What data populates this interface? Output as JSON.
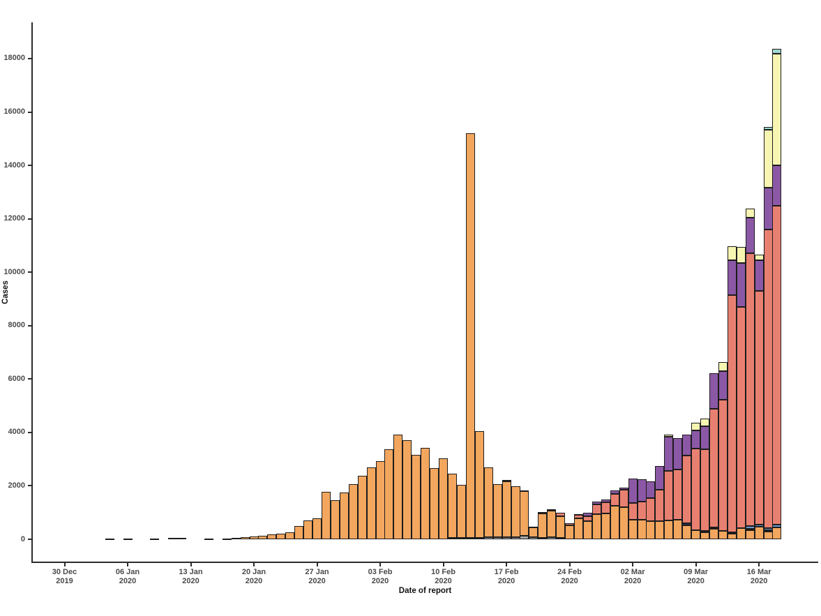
{
  "chart_data": {
    "type": "bar",
    "variant": "stacked-daily-epidemic-curve",
    "title": "",
    "xlabel": "Date of report",
    "ylabel": "Cases",
    "grid": false,
    "legend": "none visible",
    "ylim": [
      0,
      18800
    ],
    "y_ticks": [
      0,
      2000,
      4000,
      6000,
      8000,
      10000,
      12000,
      14000,
      16000,
      18000
    ],
    "x_ticks": [
      {
        "day": 0,
        "l1": "30 Dec",
        "l2": "2019"
      },
      {
        "day": 7,
        "l1": "06 Jan",
        "l2": "2020"
      },
      {
        "day": 14,
        "l1": "13 Jan",
        "l2": "2020"
      },
      {
        "day": 21,
        "l1": "20 Jan",
        "l2": "2020"
      },
      {
        "day": 28,
        "l1": "27 Jan",
        "l2": "2020"
      },
      {
        "day": 35,
        "l1": "03 Feb",
        "l2": "2020"
      },
      {
        "day": 42,
        "l1": "10 Feb",
        "l2": "2020"
      },
      {
        "day": 49,
        "l1": "17 Feb",
        "l2": "2020"
      },
      {
        "day": 56,
        "l1": "24 Feb",
        "l2": "2020"
      },
      {
        "day": 63,
        "l1": "02 Mar",
        "l2": "2020"
      },
      {
        "day": 70,
        "l1": "09 Mar",
        "l2": "2020"
      },
      {
        "day": 77,
        "l1": "16 Mar",
        "l2": "2020"
      }
    ],
    "stack_order": [
      "g",
      "o",
      "n",
      "b",
      "s",
      "p",
      "c",
      "t"
    ],
    "series_colors": {
      "g": "#a8a8a8",
      "o": "#f2a65e",
      "n": "#303a5e",
      "b": "#6f9bce",
      "s": "#e88071",
      "p": "#8b58a5",
      "c": "#f7f5b2",
      "t": "#9fd6cf"
    },
    "bars": [
      {
        "day": 5,
        "date": "04 Jan",
        "seg": {
          "o": 25
        }
      },
      {
        "day": 7,
        "date": "06 Jan",
        "seg": {
          "o": 25
        }
      },
      {
        "day": 10,
        "date": "09 Jan",
        "seg": {
          "o": 28
        }
      },
      {
        "day": 12,
        "date": "11 Jan",
        "seg": {
          "o": 40
        }
      },
      {
        "day": 13,
        "date": "12 Jan",
        "seg": {
          "o": 60
        }
      },
      {
        "day": 16,
        "date": "15 Jan",
        "seg": {
          "o": 25
        }
      },
      {
        "day": 18,
        "date": "17 Jan",
        "seg": {
          "o": 35
        }
      },
      {
        "day": 19,
        "date": "18 Jan",
        "seg": {
          "o": 52
        }
      },
      {
        "day": 20,
        "date": "19 Jan",
        "seg": {
          "o": 78
        }
      },
      {
        "day": 21,
        "date": "20 Jan",
        "seg": {
          "o": 105
        }
      },
      {
        "day": 22,
        "date": "21 Jan",
        "seg": {
          "o": 130
        }
      },
      {
        "day": 23,
        "date": "22 Jan",
        "seg": {
          "o": 175
        }
      },
      {
        "day": 24,
        "date": "23 Jan",
        "seg": {
          "o": 210
        }
      },
      {
        "day": 25,
        "date": "24 Jan",
        "seg": {
          "o": 270
        }
      },
      {
        "day": 26,
        "date": "25 Jan",
        "seg": {
          "o": 500
        }
      },
      {
        "day": 27,
        "date": "26 Jan",
        "seg": {
          "o": 715
        }
      },
      {
        "day": 28,
        "date": "27 Jan",
        "seg": {
          "o": 775
        }
      },
      {
        "day": 29,
        "date": "28 Jan",
        "seg": {
          "o": 1775
        }
      },
      {
        "day": 30,
        "date": "29 Jan",
        "seg": {
          "o": 1470
        }
      },
      {
        "day": 31,
        "date": "30 Jan",
        "seg": {
          "o": 1750
        }
      },
      {
        "day": 32,
        "date": "31 Jan",
        "seg": {
          "o": 2065
        }
      },
      {
        "day": 33,
        "date": "01 Feb",
        "seg": {
          "o": 2370
        }
      },
      {
        "day": 34,
        "date": "02 Feb",
        "seg": {
          "o": 2690
        }
      },
      {
        "day": 35,
        "date": "03 Feb",
        "seg": {
          "o": 2935
        }
      },
      {
        "day": 36,
        "date": "04 Feb",
        "seg": {
          "o": 3370
        }
      },
      {
        "day": 37,
        "date": "05 Feb",
        "seg": {
          "o": 3915
        }
      },
      {
        "day": 38,
        "date": "06 Feb",
        "seg": {
          "o": 3710
        }
      },
      {
        "day": 39,
        "date": "07 Feb",
        "seg": {
          "o": 3160
        }
      },
      {
        "day": 40,
        "date": "08 Feb",
        "seg": {
          "o": 3420
        }
      },
      {
        "day": 41,
        "date": "09 Feb",
        "seg": {
          "o": 2660
        }
      },
      {
        "day": 42,
        "date": "10 Feb",
        "seg": {
          "o": 3040
        }
      },
      {
        "day": 43,
        "date": "11 Feb",
        "seg": {
          "g": 40,
          "o": 2410
        }
      },
      {
        "day": 44,
        "date": "12 Feb",
        "seg": {
          "g": 40,
          "o": 2000
        }
      },
      {
        "day": 45,
        "date": "13 Feb",
        "seg": {
          "g": 50,
          "o": 15160
        }
      },
      {
        "day": 46,
        "date": "14 Feb",
        "seg": {
          "g": 60,
          "o": 3980
        }
      },
      {
        "day": 47,
        "date": "15 Feb",
        "seg": {
          "g": 70,
          "o": 2620
        }
      },
      {
        "day": 48,
        "date": "16 Feb",
        "seg": {
          "g": 70,
          "o": 1990
        }
      },
      {
        "day": 49,
        "date": "17 Feb",
        "seg": {
          "g": 90,
          "o": 2090,
          "s": 50
        }
      },
      {
        "day": 50,
        "date": "18 Feb",
        "seg": {
          "g": 90,
          "o": 1890
        }
      },
      {
        "day": 51,
        "date": "19 Feb",
        "seg": {
          "g": 130,
          "o": 1680,
          "s": 30
        }
      },
      {
        "day": 52,
        "date": "20 Feb",
        "seg": {
          "g": 80,
          "o": 360,
          "s": 30
        }
      },
      {
        "day": 53,
        "date": "21 Feb",
        "seg": {
          "g": 60,
          "o": 910,
          "s": 40
        }
      },
      {
        "day": 54,
        "date": "22 Feb",
        "seg": {
          "g": 80,
          "o": 980,
          "s": 60
        }
      },
      {
        "day": 55,
        "date": "23 Feb",
        "seg": {
          "g": 55,
          "o": 800,
          "s": 135
        }
      },
      {
        "day": 56,
        "date": "24 Feb",
        "seg": {
          "o": 520,
          "s": 80
        }
      },
      {
        "day": 57,
        "date": "25 Feb",
        "seg": {
          "o": 790,
          "s": 120,
          "p": 40
        }
      },
      {
        "day": 58,
        "date": "26 Feb",
        "seg": {
          "o": 690,
          "s": 175,
          "p": 125
        }
      },
      {
        "day": 59,
        "date": "27 Feb",
        "seg": {
          "o": 930,
          "s": 370,
          "p": 110
        }
      },
      {
        "day": 60,
        "date": "28 Feb",
        "seg": {
          "o": 965,
          "s": 420,
          "p": 105
        }
      },
      {
        "day": 61,
        "date": "29 Feb",
        "seg": {
          "o": 1250,
          "s": 460,
          "p": 120
        }
      },
      {
        "day": 62,
        "date": "01 Mar",
        "seg": {
          "o": 1210,
          "s": 655,
          "p": 65
        }
      },
      {
        "day": 63,
        "date": "02 Mar",
        "seg": {
          "o": 730,
          "s": 640,
          "p": 900
        }
      },
      {
        "day": 64,
        "date": "03 Mar",
        "seg": {
          "o": 730,
          "s": 670,
          "p": 840
        }
      },
      {
        "day": 65,
        "date": "04 Mar",
        "seg": {
          "o": 690,
          "s": 850,
          "p": 630
        }
      },
      {
        "day": 66,
        "date": "05 Mar",
        "seg": {
          "o": 670,
          "s": 1180,
          "p": 890
        }
      },
      {
        "day": 67,
        "date": "06 Mar",
        "seg": {
          "o": 700,
          "s": 1870,
          "p": 1270,
          "c": 80
        }
      },
      {
        "day": 68,
        "date": "07 Mar",
        "seg": {
          "o": 730,
          "s": 1890,
          "p": 1170
        }
      },
      {
        "day": 69,
        "date": "08 Mar",
        "seg": {
          "o": 530,
          "n": 60,
          "s": 2540,
          "p": 800
        }
      },
      {
        "day": 70,
        "date": "09 Mar",
        "seg": {
          "o": 340,
          "s": 3060,
          "p": 680,
          "c": 280
        }
      },
      {
        "day": 71,
        "date": "10 Mar",
        "seg": {
          "o": 260,
          "n": 60,
          "s": 3060,
          "p": 860,
          "c": 270
        }
      },
      {
        "day": 72,
        "date": "11 Mar",
        "seg": {
          "o": 400,
          "n": 50,
          "s": 4440,
          "p": 1330
        }
      },
      {
        "day": 73,
        "date": "12 Mar",
        "seg": {
          "o": 310,
          "s": 4920,
          "p": 1070,
          "c": 330
        }
      },
      {
        "day": 74,
        "date": "13 Mar",
        "seg": {
          "o": 210,
          "n": 50,
          "s": 8880,
          "p": 1320,
          "c": 520
        }
      },
      {
        "day": 75,
        "date": "14 Mar",
        "seg": {
          "o": 425,
          "s": 8270,
          "p": 1655,
          "c": 590
        }
      },
      {
        "day": 76,
        "date": "15 Mar",
        "seg": {
          "o": 340,
          "n": 50,
          "b": 105,
          "s": 10220,
          "p": 1330,
          "c": 340
        }
      },
      {
        "day": 77,
        "date": "16 Mar",
        "seg": {
          "o": 470,
          "b": 80,
          "s": 8750,
          "p": 1160,
          "c": 190
        }
      },
      {
        "day": 78,
        "date": "17 Mar",
        "seg": {
          "o": 295,
          "n": 50,
          "b": 80,
          "s": 11180,
          "p": 1570,
          "c": 2170,
          "t": 100
        }
      },
      {
        "day": 79,
        "date": "18 Mar",
        "seg": {
          "o": 440,
          "b": 105,
          "s": 11940,
          "p": 1515,
          "c": 4180,
          "t": 185
        }
      }
    ]
  }
}
